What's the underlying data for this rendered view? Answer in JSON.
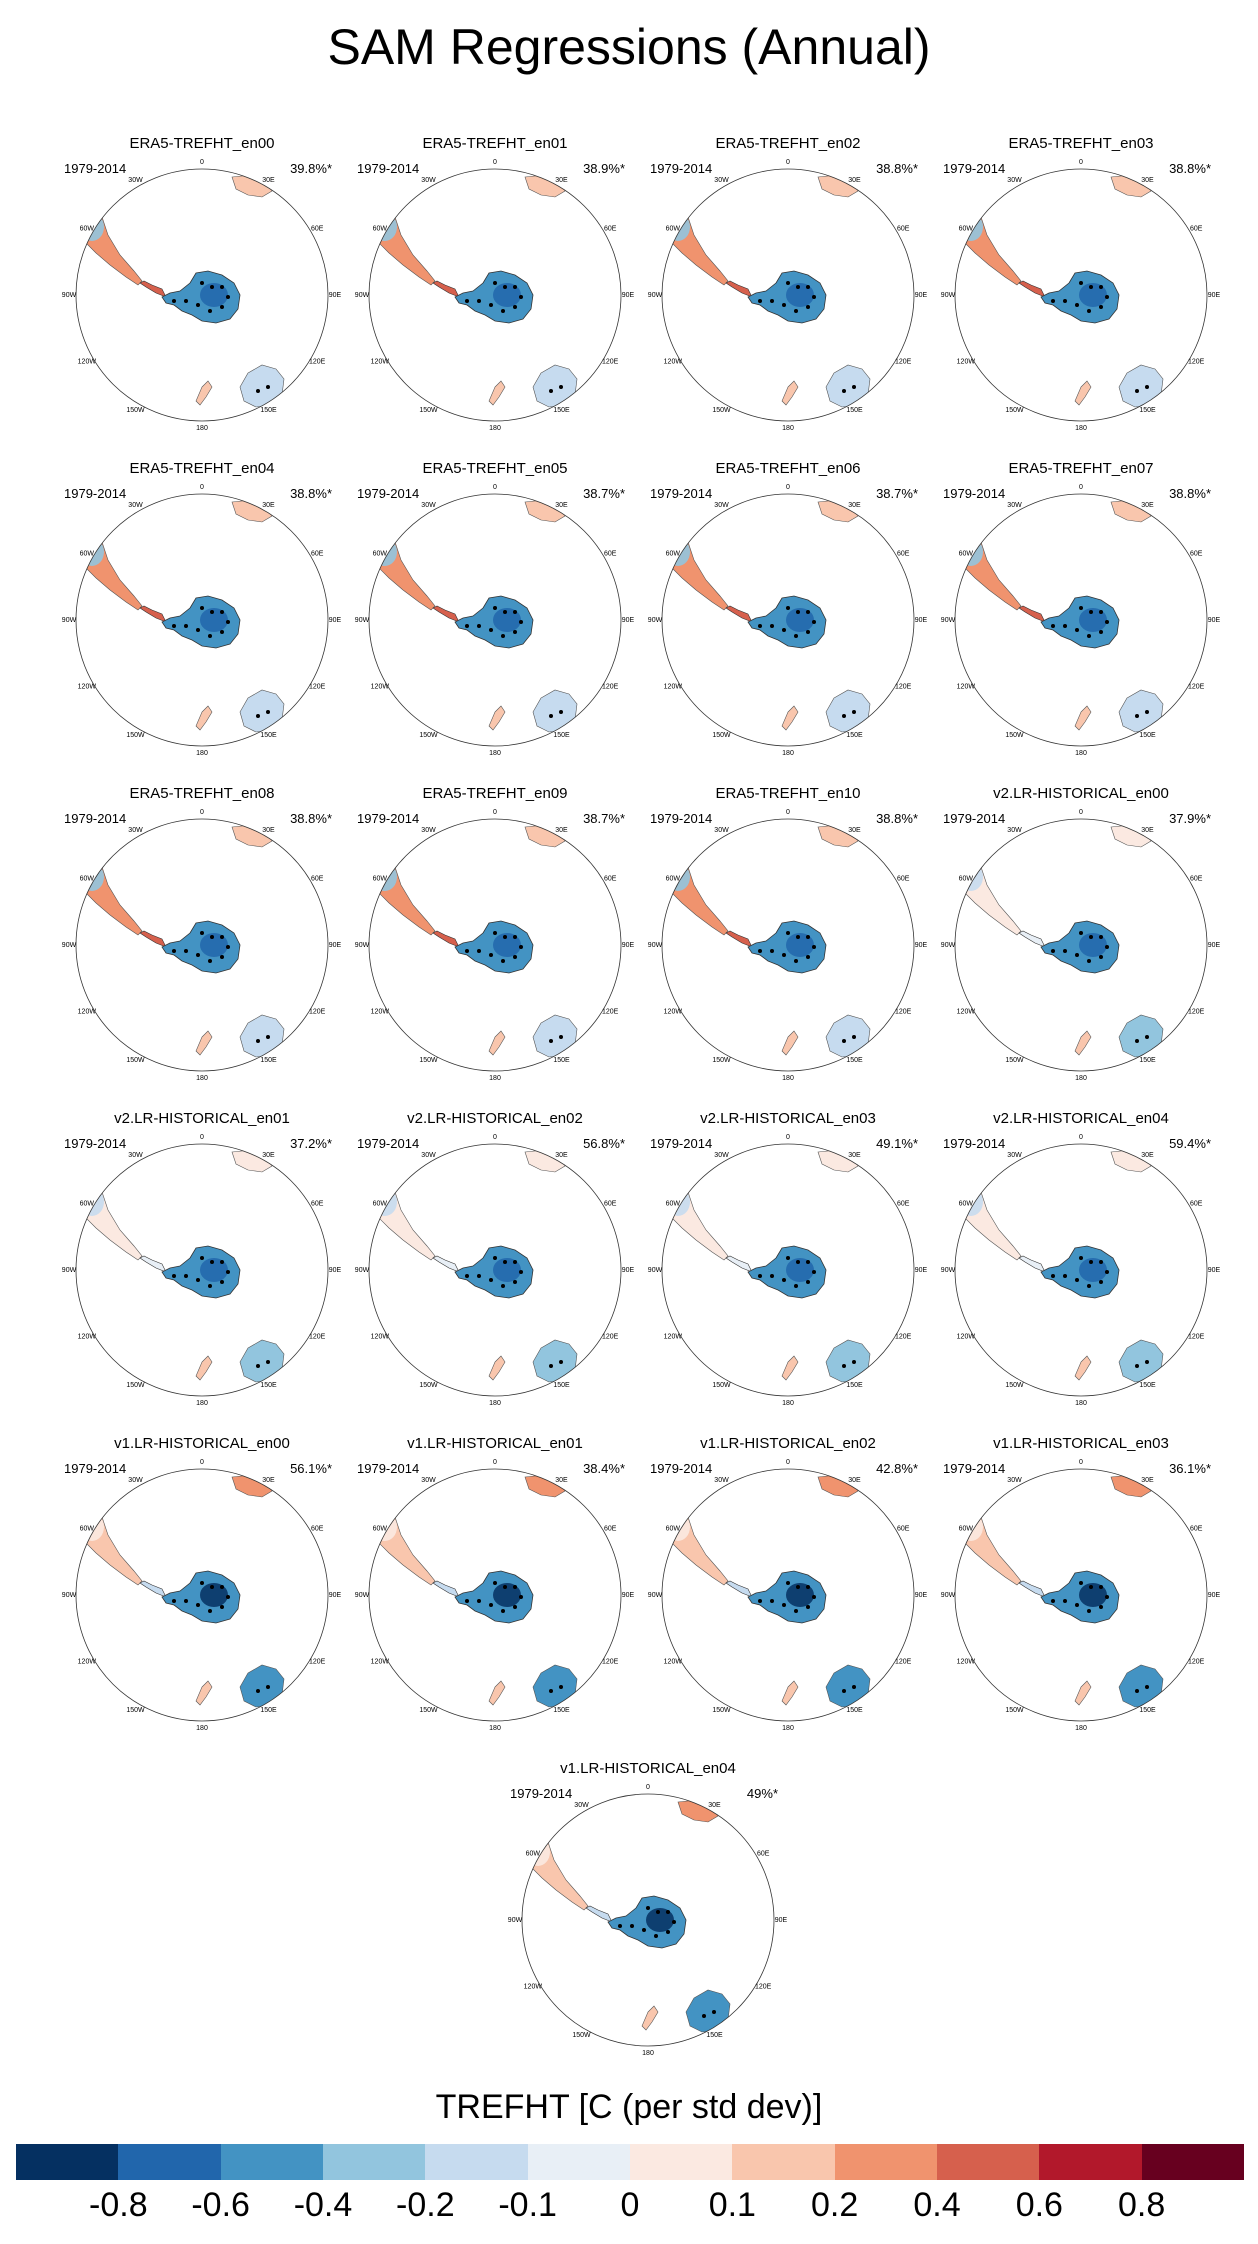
{
  "title": "SAM Regressions (Annual)",
  "panels": [
    {
      "title": "ERA5-TREFHT_en00",
      "years": "1979-2014",
      "pct": "39.8%*",
      "pattern": "era5"
    },
    {
      "title": "ERA5-TREFHT_en01",
      "years": "1979-2014",
      "pct": "38.9%*",
      "pattern": "era5"
    },
    {
      "title": "ERA5-TREFHT_en02",
      "years": "1979-2014",
      "pct": "38.8%*",
      "pattern": "era5"
    },
    {
      "title": "ERA5-TREFHT_en03",
      "years": "1979-2014",
      "pct": "38.8%*",
      "pattern": "era5"
    },
    {
      "title": "ERA5-TREFHT_en04",
      "years": "1979-2014",
      "pct": "38.8%*",
      "pattern": "era5"
    },
    {
      "title": "ERA5-TREFHT_en05",
      "years": "1979-2014",
      "pct": "38.7%*",
      "pattern": "era5"
    },
    {
      "title": "ERA5-TREFHT_en06",
      "years": "1979-2014",
      "pct": "38.7%*",
      "pattern": "era5"
    },
    {
      "title": "ERA5-TREFHT_en07",
      "years": "1979-2014",
      "pct": "38.8%*",
      "pattern": "era5"
    },
    {
      "title": "ERA5-TREFHT_en08",
      "years": "1979-2014",
      "pct": "38.8%*",
      "pattern": "era5"
    },
    {
      "title": "ERA5-TREFHT_en09",
      "years": "1979-2014",
      "pct": "38.7%*",
      "pattern": "era5"
    },
    {
      "title": "ERA5-TREFHT_en10",
      "years": "1979-2014",
      "pct": "38.8%*",
      "pattern": "era5"
    },
    {
      "title": "v2.LR-HISTORICAL_en00",
      "years": "1979-2014",
      "pct": "37.9%*",
      "pattern": "v2"
    },
    {
      "title": "v2.LR-HISTORICAL_en01",
      "years": "1979-2014",
      "pct": "37.2%*",
      "pattern": "v2"
    },
    {
      "title": "v2.LR-HISTORICAL_en02",
      "years": "1979-2014",
      "pct": "56.8%*",
      "pattern": "v2"
    },
    {
      "title": "v2.LR-HISTORICAL_en03",
      "years": "1979-2014",
      "pct": "49.1%*",
      "pattern": "v2"
    },
    {
      "title": "v2.LR-HISTORICAL_en04",
      "years": "1979-2014",
      "pct": "59.4%*",
      "pattern": "v2"
    },
    {
      "title": "v1.LR-HISTORICAL_en00",
      "years": "1979-2014",
      "pct": "56.1%*",
      "pattern": "v1"
    },
    {
      "title": "v1.LR-HISTORICAL_en01",
      "years": "1979-2014",
      "pct": "38.4%*",
      "pattern": "v1"
    },
    {
      "title": "v1.LR-HISTORICAL_en02",
      "years": "1979-2014",
      "pct": "42.8%*",
      "pattern": "v1"
    },
    {
      "title": "v1.LR-HISTORICAL_en03",
      "years": "1979-2014",
      "pct": "36.1%*",
      "pattern": "v1"
    },
    {
      "title": "v1.LR-HISTORICAL_en04",
      "years": "1979-2014",
      "pct": "49%*",
      "pattern": "v1"
    }
  ],
  "lon_labels": [
    "0",
    "30E",
    "60E",
    "90E",
    "120E",
    "150E",
    "180",
    "150W",
    "120W",
    "90W",
    "60W",
    "30W"
  ],
  "colorbar": {
    "title": "TREFHT [C (per std dev)]",
    "colors": [
      "#053061",
      "#2166ac",
      "#4393c3",
      "#92c5de",
      "#c6dbef",
      "#e8eff6",
      "#fbe9e1",
      "#f9c6ad",
      "#f0936e",
      "#d6604d",
      "#b2182b",
      "#67001f"
    ],
    "ticks": [
      "-0.8",
      "-0.6",
      "-0.4",
      "-0.2",
      "-0.1",
      "0",
      "0.1",
      "0.2",
      "0.4",
      "0.6",
      "0.8"
    ]
  }
}
